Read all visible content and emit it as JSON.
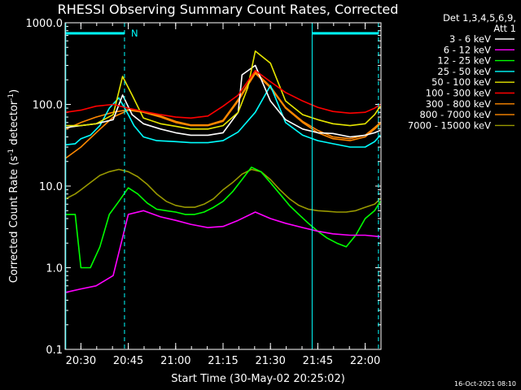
{
  "chart_data": {
    "type": "line",
    "title": "RHESSI Observing Summary Count Rates, Corrected",
    "xlabel": "Start Time (30-May-02 20:25:02)",
    "ylabel": "Corrected Count Rate (s",
    "ylabel_sup1": "-1",
    "ylabel_mid": " detector",
    "ylabel_sup2": "-1",
    "ylabel_end": ")",
    "yscale": "log",
    "ylim": [
      0.1,
      1000
    ],
    "xlim_minutes": [
      20.4167,
      22.0833
    ],
    "y_tick_labels": [
      "0.1",
      "1.0",
      "10.0",
      "100.0",
      "1000.0"
    ],
    "x_tick_labels": [
      "20:30",
      "20:45",
      "21:00",
      "21:15",
      "21:30",
      "21:45",
      "22:00"
    ],
    "legend_header": [
      "Det 1,3,4,5,6,9,",
      "Att 1"
    ],
    "legend_placement": "right",
    "flag_labels": {
      "N": "N"
    },
    "timestamp": "16-Oct-2021 08:10",
    "series": [
      {
        "name": "3 - 6 keV",
        "color": "#ffffff",
        "x": [
          20.42,
          20.5,
          20.58,
          20.67,
          20.72,
          20.77,
          20.83,
          20.92,
          21.0,
          21.08,
          21.17,
          21.25,
          21.33,
          21.35,
          21.42,
          21.5,
          21.58,
          21.67,
          21.75,
          21.83,
          21.92,
          22.0,
          22.05,
          22.08
        ],
        "values": [
          52,
          55,
          58,
          65,
          130,
          75,
          58,
          50,
          45,
          42,
          42,
          45,
          80,
          230,
          300,
          110,
          65,
          50,
          45,
          44,
          40,
          42,
          45,
          48
        ]
      },
      {
        "name": "6 - 12 keV",
        "color": "#ff00ff",
        "x": [
          20.42,
          20.5,
          20.58,
          20.67,
          20.75,
          20.83,
          20.92,
          21.0,
          21.08,
          21.17,
          21.25,
          21.33,
          21.42,
          21.5,
          21.58,
          21.67,
          21.75,
          21.83,
          21.92,
          22.0,
          22.08
        ],
        "values": [
          0.5,
          0.55,
          0.6,
          0.8,
          4.5,
          5,
          4.2,
          3.8,
          3.4,
          3.1,
          3.2,
          3.8,
          4.8,
          4.0,
          3.5,
          3.1,
          2.8,
          2.6,
          2.5,
          2.5,
          2.4
        ]
      },
      {
        "name": "12 - 25 keV",
        "color": "#00ff00",
        "x": [
          20.42,
          20.47,
          20.5,
          20.55,
          20.6,
          20.65,
          20.7,
          20.75,
          20.8,
          20.85,
          20.9,
          20.95,
          21.0,
          21.05,
          21.1,
          21.15,
          21.2,
          21.25,
          21.3,
          21.35,
          21.4,
          21.45,
          21.5,
          21.55,
          21.6,
          21.65,
          21.7,
          21.75,
          21.8,
          21.85,
          21.9,
          21.95,
          22.0,
          22.05,
          22.08
        ],
        "values": [
          4.5,
          4.5,
          1.0,
          1.0,
          1.8,
          4.5,
          6.5,
          9.5,
          8.0,
          6.2,
          5.2,
          5.0,
          4.8,
          4.5,
          4.5,
          4.8,
          5.5,
          6.5,
          8.5,
          12,
          17,
          15,
          11,
          8,
          5.8,
          4.5,
          3.5,
          2.8,
          2.3,
          2.0,
          1.8,
          2.5,
          4.0,
          5.0,
          6.5
        ]
      },
      {
        "name": "25 - 50 keV",
        "color": "#00ffff",
        "x": [
          20.42,
          20.47,
          20.5,
          20.55,
          20.6,
          20.65,
          20.7,
          20.75,
          20.78,
          20.83,
          20.9,
          21.0,
          21.08,
          21.17,
          21.25,
          21.33,
          21.42,
          21.5,
          21.58,
          21.67,
          21.75,
          21.83,
          21.92,
          22.0,
          22.05,
          22.08
        ],
        "values": [
          32,
          33,
          38,
          42,
          55,
          90,
          120,
          75,
          55,
          40,
          36,
          35,
          34,
          34,
          36,
          46,
          80,
          170,
          60,
          42,
          36,
          33,
          30,
          30,
          35,
          42
        ]
      },
      {
        "name": "50 - 100 keV",
        "color": "#e6e600",
        "x": [
          20.42,
          20.5,
          20.58,
          20.67,
          20.72,
          20.77,
          20.83,
          20.92,
          21.0,
          21.08,
          21.17,
          21.25,
          21.33,
          21.38,
          21.42,
          21.5,
          21.58,
          21.67,
          21.75,
          21.83,
          21.92,
          22.0,
          22.05,
          22.08
        ],
        "values": [
          55,
          55,
          58,
          75,
          220,
          130,
          68,
          58,
          54,
          50,
          50,
          55,
          80,
          160,
          450,
          320,
          110,
          75,
          65,
          58,
          55,
          58,
          75,
          95
        ]
      },
      {
        "name": "100 - 300 keV",
        "color": "#ff0000",
        "x": [
          20.42,
          20.5,
          20.58,
          20.67,
          20.75,
          20.83,
          20.92,
          21.0,
          21.08,
          21.17,
          21.25,
          21.33,
          21.42,
          21.5,
          21.58,
          21.67,
          21.75,
          21.83,
          21.92,
          22.0,
          22.05,
          22.08
        ],
        "values": [
          80,
          85,
          95,
          100,
          90,
          82,
          75,
          70,
          68,
          72,
          95,
          130,
          260,
          190,
          140,
          110,
          92,
          82,
          78,
          80,
          90,
          100
        ]
      },
      {
        "name": "300 - 800 keV",
        "color": "#ff8800",
        "x": [
          20.42,
          20.5,
          20.58,
          20.67,
          20.75,
          20.83,
          20.92,
          21.0,
          21.08,
          21.17,
          21.25,
          21.33,
          21.42,
          21.5,
          21.58,
          21.67,
          21.75,
          21.83,
          21.92,
          22.0,
          22.05,
          22.08
        ],
        "values": [
          22,
          30,
          45,
          70,
          85,
          80,
          70,
          60,
          55,
          55,
          62,
          110,
          240,
          160,
          90,
          60,
          45,
          38,
          36,
          40,
          50,
          58
        ]
      },
      {
        "name": "800 - 7000 keV",
        "color": "#ff8800",
        "x": [
          20.42,
          20.5,
          20.58,
          20.67,
          20.75,
          20.83,
          20.92,
          21.0,
          21.08,
          21.17,
          21.25,
          21.33,
          21.42,
          21.5,
          21.58,
          21.67,
          21.75,
          21.83,
          21.92,
          22.0,
          22.05,
          22.08
        ],
        "values": [
          50,
          60,
          70,
          80,
          86,
          82,
          72,
          62,
          56,
          56,
          64,
          115,
          250,
          165,
          92,
          62,
          48,
          40,
          38,
          42,
          52,
          60
        ]
      },
      {
        "name": "7000 - 15000 keV",
        "color": "#999900",
        "x": [
          20.42,
          20.47,
          20.5,
          20.55,
          20.6,
          20.65,
          20.7,
          20.75,
          20.8,
          20.85,
          20.9,
          20.95,
          21.0,
          21.05,
          21.1,
          21.15,
          21.2,
          21.25,
          21.3,
          21.35,
          21.4,
          21.45,
          21.5,
          21.55,
          21.6,
          21.65,
          21.7,
          21.75,
          21.8,
          21.85,
          21.9,
          21.95,
          22.0,
          22.05,
          22.08
        ],
        "values": [
          7,
          8,
          9,
          11,
          13.5,
          15,
          16,
          15,
          13,
          10.5,
          8,
          6.5,
          5.8,
          5.5,
          5.5,
          6,
          7,
          9,
          11,
          14,
          16,
          15,
          12,
          9,
          7,
          5.8,
          5.2,
          5.0,
          4.9,
          4.8,
          4.8,
          5.0,
          5.5,
          6,
          7
        ]
      }
    ]
  }
}
